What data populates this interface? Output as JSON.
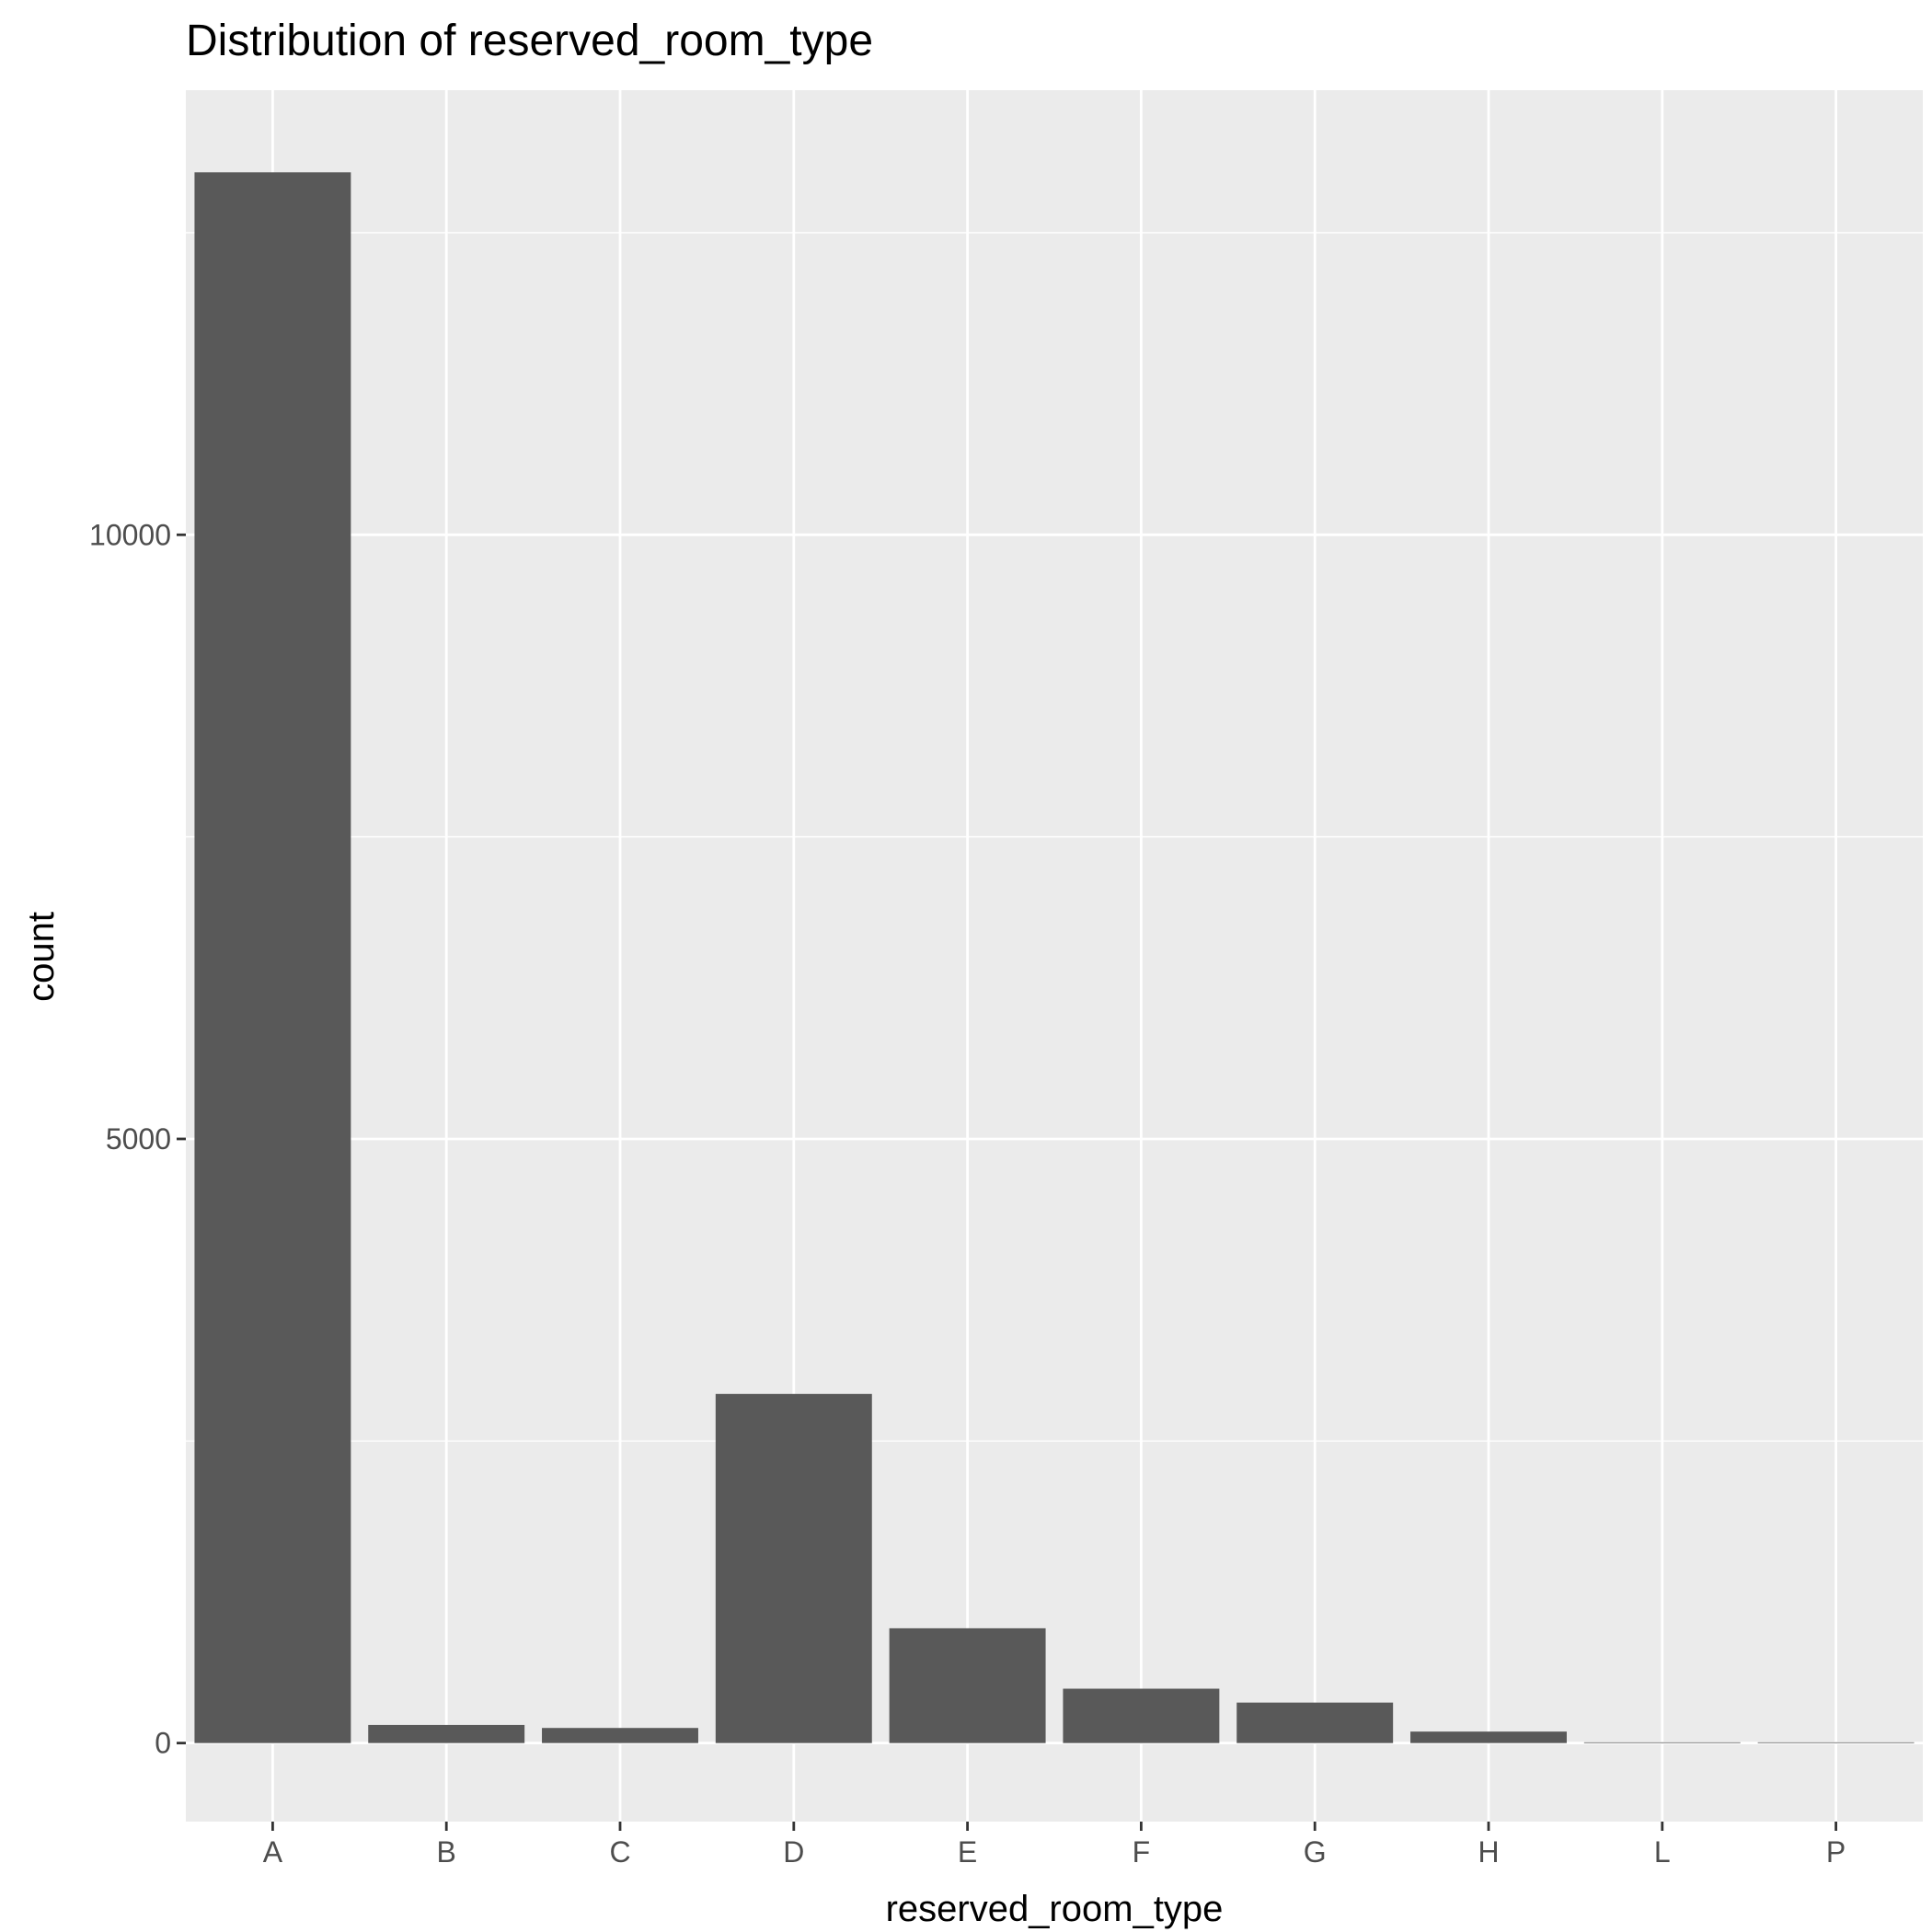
{
  "chart_data": {
    "type": "bar",
    "title": "Distribution of reserved_room_type",
    "xlabel": "reserved_room_type",
    "ylabel": "count",
    "categories": [
      "A",
      "B",
      "C",
      "D",
      "E",
      "F",
      "G",
      "H",
      "L",
      "P"
    ],
    "values": [
      13000,
      150,
      125,
      2890,
      950,
      450,
      335,
      95,
      5,
      5
    ],
    "ylim": [
      -650,
      13680
    ],
    "y_ticks": [
      0,
      5000,
      10000
    ],
    "y_tick_labels": [
      "0",
      "5000",
      "10000"
    ],
    "grid": true,
    "legend": "none",
    "colors": {
      "panel_background": "#ebebeb",
      "grid": "#ffffff",
      "bar_fill": "#595959",
      "tick_mark": "#333333",
      "tick_text": "#4d4d4d",
      "text": "#000000"
    }
  }
}
